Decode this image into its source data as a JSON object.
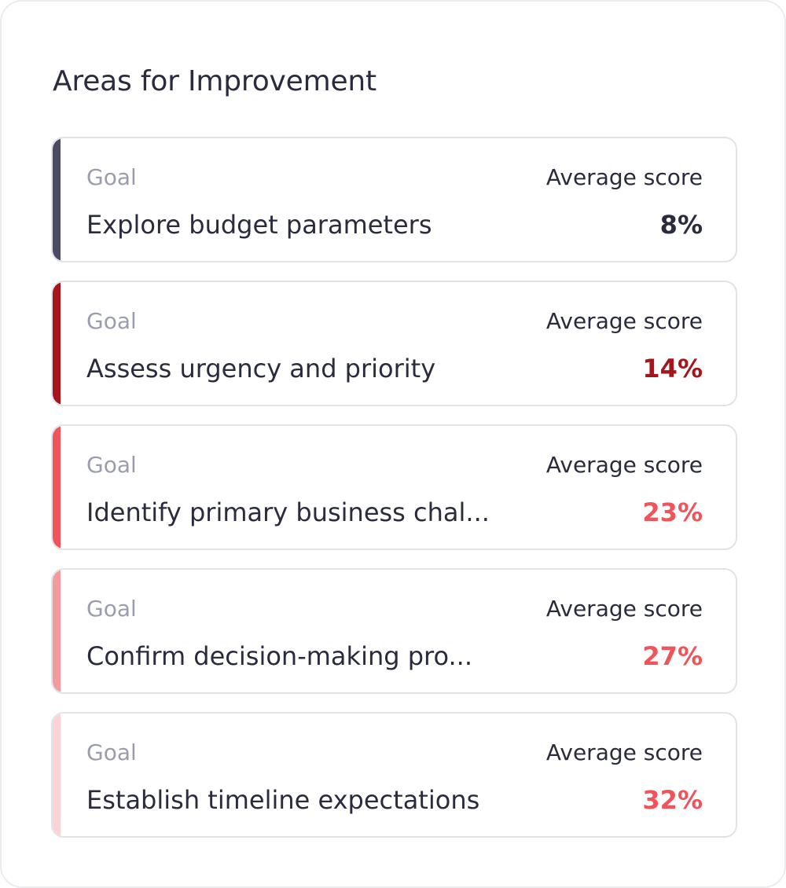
{
  "panel": {
    "title": "Areas for Improvement"
  },
  "goals": [
    {
      "goal_label": "Goal",
      "name": "Explore budget parameters",
      "score_label": "Average score",
      "score": "8%",
      "accent_color": "#4a4b63",
      "score_color": "#2a2b3d"
    },
    {
      "goal_label": "Goal",
      "name": "Assess urgency and priority",
      "score_label": "Average score",
      "score": "14%",
      "accent_color": "#a8141b",
      "score_color": "#a8141b"
    },
    {
      "goal_label": "Goal",
      "name": "Identify primary business chal...",
      "score_label": "Average score",
      "score": "23%",
      "accent_color": "#f0545a",
      "score_color": "#f0545a"
    },
    {
      "goal_label": "Goal",
      "name": "Confirm decision-making pro...",
      "score_label": "Average score",
      "score": "27%",
      "accent_color": "#f59b9e",
      "score_color": "#f0545a"
    },
    {
      "goal_label": "Goal",
      "name": "Establish timeline expectations",
      "score_label": "Average score",
      "score": "32%",
      "accent_color": "#fbd3d4",
      "score_color": "#f0545a"
    }
  ]
}
